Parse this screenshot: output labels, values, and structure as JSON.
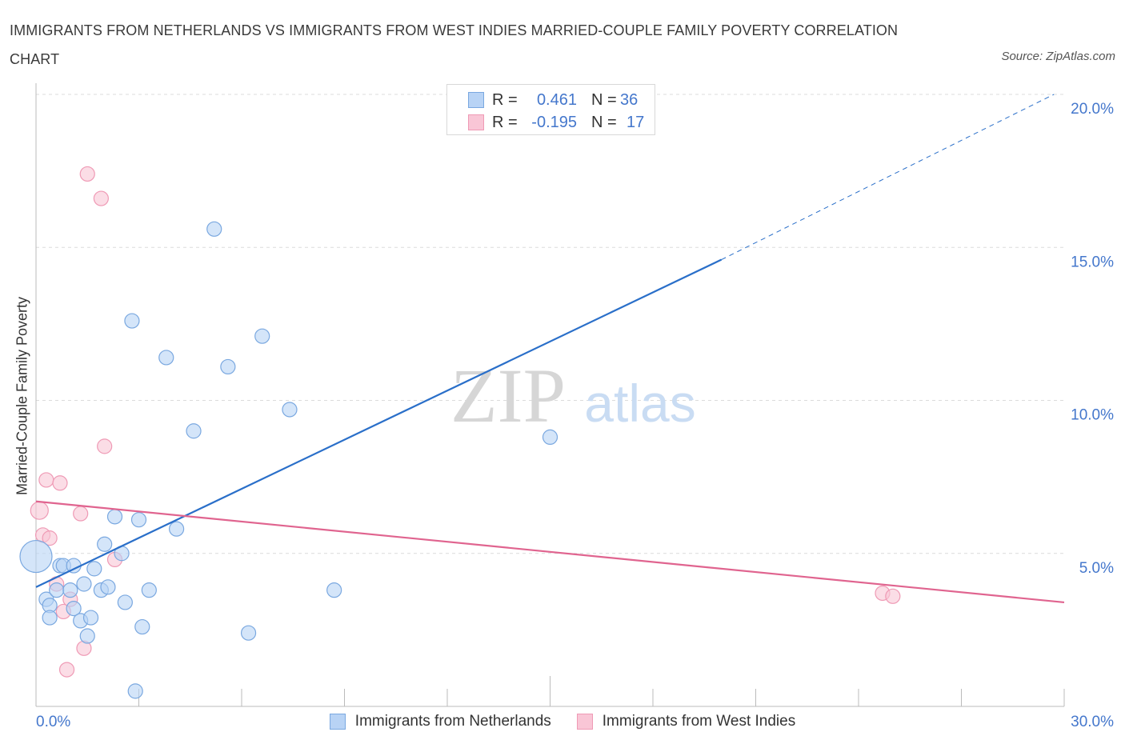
{
  "title": "IMMIGRANTS FROM NETHERLANDS VS IMMIGRANTS FROM WEST INDIES MARRIED-COUPLE FAMILY POVERTY CORRELATION CHART",
  "source": "Source: ZipAtlas.com",
  "watermark": {
    "zip": "ZIP",
    "atlas": "atlas"
  },
  "legend": {
    "r_label": "R =",
    "n_label": "N =",
    "rows": [
      {
        "r": "0.461",
        "n": "36"
      },
      {
        "r": "-0.195",
        "n": "17"
      }
    ]
  },
  "colors": {
    "netherlands_fill": "#b8d3f5",
    "netherlands_stroke": "#7aa8e0",
    "netherlands_line": "#2a6fc9",
    "westindies_fill": "#f9c6d6",
    "westindies_stroke": "#ef9ab5",
    "westindies_line": "#e0648f",
    "axis_text": "#4477cc",
    "grid": "#dcdcdc"
  },
  "chart_data": {
    "type": "scatter",
    "title": "IMMIGRANTS FROM NETHERLANDS VS IMMIGRANTS FROM WEST INDIES MARRIED-COUPLE FAMILY POVERTY CORRELATION CHART",
    "xlabel": "",
    "ylabel": "Married-Couple Family Poverty",
    "xlim": [
      0,
      30
    ],
    "ylim": [
      0,
      20
    ],
    "x_tick_labels": [
      "0.0%",
      "30.0%"
    ],
    "y_ticks": [
      5,
      10,
      15,
      20
    ],
    "y_tick_labels": [
      "5.0%",
      "10.0%",
      "15.0%",
      "20.0%"
    ],
    "series": [
      {
        "name": "Immigrants from Netherlands",
        "R": 0.461,
        "N": 36,
        "trend": {
          "x0": 0,
          "y0": 3.9,
          "x1": 20,
          "y1": 14.6,
          "dash_to_x": 29.7,
          "dash_to_y": 20
        },
        "points": [
          [
            0.0,
            4.9,
            20
          ],
          [
            0.3,
            3.5,
            9
          ],
          [
            0.4,
            3.3,
            9
          ],
          [
            0.4,
            2.9,
            9
          ],
          [
            0.6,
            3.8,
            9
          ],
          [
            0.7,
            4.6,
            9
          ],
          [
            0.8,
            4.6,
            9
          ],
          [
            1.0,
            3.8,
            9
          ],
          [
            1.1,
            4.6,
            9
          ],
          [
            1.1,
            3.2,
            9
          ],
          [
            1.3,
            2.8,
            9
          ],
          [
            1.4,
            4.0,
            9
          ],
          [
            1.5,
            2.3,
            9
          ],
          [
            1.6,
            2.9,
            9
          ],
          [
            1.7,
            4.5,
            9
          ],
          [
            1.9,
            3.8,
            9
          ],
          [
            2.0,
            5.3,
            9
          ],
          [
            2.1,
            3.9,
            9
          ],
          [
            2.3,
            6.2,
            9
          ],
          [
            2.5,
            5.0,
            9
          ],
          [
            2.6,
            3.4,
            9
          ],
          [
            2.8,
            12.6,
            9
          ],
          [
            2.9,
            0.5,
            9
          ],
          [
            3.0,
            6.1,
            9
          ],
          [
            3.1,
            2.6,
            9
          ],
          [
            3.3,
            3.8,
            9
          ],
          [
            3.8,
            11.4,
            9
          ],
          [
            4.1,
            5.8,
            9
          ],
          [
            4.6,
            9.0,
            9
          ],
          [
            5.2,
            15.6,
            9
          ],
          [
            5.6,
            11.1,
            9
          ],
          [
            6.2,
            2.4,
            9
          ],
          [
            6.6,
            12.1,
            9
          ],
          [
            7.4,
            9.7,
            9
          ],
          [
            8.7,
            3.8,
            9
          ],
          [
            15.0,
            8.8,
            9
          ]
        ]
      },
      {
        "name": "Immigrants from West Indies",
        "R": -0.195,
        "N": 17,
        "trend": {
          "x0": 0,
          "y0": 6.7,
          "x1": 30,
          "y1": 3.4
        },
        "points": [
          [
            0.1,
            6.4,
            11
          ],
          [
            0.2,
            5.6,
            9
          ],
          [
            0.3,
            7.4,
            9
          ],
          [
            0.4,
            5.5,
            9
          ],
          [
            0.6,
            4.0,
            9
          ],
          [
            0.7,
            7.3,
            9
          ],
          [
            0.8,
            3.1,
            9
          ],
          [
            0.9,
            1.2,
            9
          ],
          [
            1.0,
            3.5,
            9
          ],
          [
            1.4,
            1.9,
            9
          ],
          [
            1.3,
            6.3,
            9
          ],
          [
            1.5,
            17.4,
            9
          ],
          [
            1.9,
            16.6,
            9
          ],
          [
            2.0,
            8.5,
            9
          ],
          [
            2.3,
            4.8,
            9
          ],
          [
            24.7,
            3.7,
            9
          ],
          [
            25.0,
            3.6,
            9
          ]
        ]
      }
    ]
  }
}
